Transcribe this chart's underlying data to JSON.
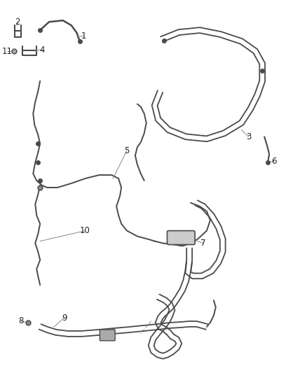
{
  "bg_color": "#ffffff",
  "line_color": "#4a4a4a",
  "label_color": "#222222",
  "callout_color": "#888888",
  "fig_width": 4.38,
  "fig_height": 5.33,
  "dpi": 100
}
